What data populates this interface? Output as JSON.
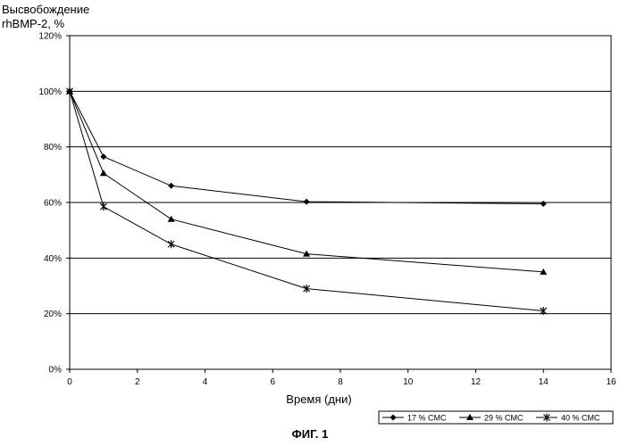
{
  "chart_data": {
    "type": "line",
    "ylabel_lines": [
      "Высвобождение",
      "rhBMP-2, %"
    ],
    "xlabel": "Время (дни)",
    "x_ticks": [
      "0",
      "2",
      "4",
      "6",
      "8",
      "10",
      "12",
      "14",
      "16"
    ],
    "y_ticks": [
      "0%",
      "20%",
      "40%",
      "60%",
      "80%",
      "100%",
      "120%"
    ],
    "xlim": [
      0,
      16
    ],
    "ylim": [
      0,
      120
    ],
    "grid": "horizontal",
    "legend_position": "bottom-right",
    "series": [
      {
        "name": "17 % CMC",
        "marker": "diamond",
        "x": [
          0,
          1,
          3,
          7,
          14
        ],
        "y": [
          100,
          76.5,
          66,
          60.3,
          59.5
        ]
      },
      {
        "name": "29 % CMC",
        "marker": "triangle",
        "x": [
          0,
          1,
          3,
          7,
          14
        ],
        "y": [
          100,
          70.5,
          54,
          41.5,
          35
        ]
      },
      {
        "name": "40 % CMC",
        "marker": "star",
        "x": [
          0,
          1,
          3,
          7,
          14
        ],
        "y": [
          100,
          58.5,
          45,
          29,
          21
        ]
      }
    ]
  },
  "figure_caption": "ФИГ. 1"
}
